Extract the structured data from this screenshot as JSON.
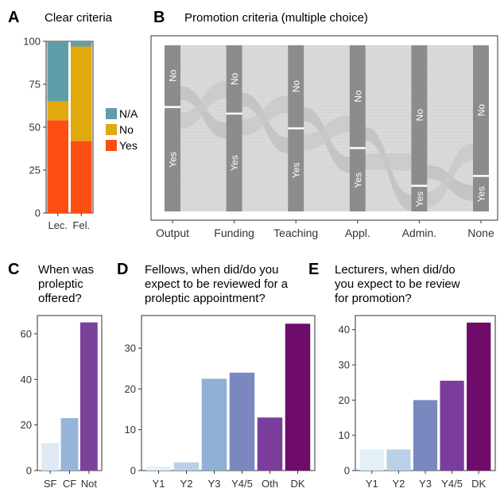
{
  "panels": {
    "a": {
      "letter": "A",
      "title": "Clear criteria"
    },
    "b": {
      "letter": "B",
      "title": "Promotion criteria (multiple choice)"
    },
    "c": {
      "letter": "C",
      "title_lines": [
        "When was",
        "proleptic",
        "offered?"
      ]
    },
    "d": {
      "letter": "D",
      "title_lines": [
        "Fellows, when did/do you",
        "expect to be reviewed for a",
        "proleptic appointment?"
      ]
    },
    "e": {
      "letter": "E",
      "title_lines": [
        "Lecturers, when did/do",
        "you expect to be review",
        "for promotion?"
      ]
    }
  },
  "chart_data": [
    {
      "id": "A",
      "type": "bar",
      "stacked": true,
      "title": "Clear criteria",
      "categories": [
        "Lec.",
        "Fel."
      ],
      "series": [
        {
          "name": "Yes",
          "color": "#fc4e12",
          "values": [
            54,
            42
          ]
        },
        {
          "name": "No",
          "color": "#e0a90e",
          "values": [
            11,
            55
          ]
        },
        {
          "name": "N/A",
          "color": "#5f9ea8",
          "values": [
            35,
            3
          ]
        }
      ],
      "ylim": [
        0,
        100
      ],
      "yticks": [
        0,
        25,
        50,
        75,
        100
      ],
      "legend": {
        "placement": "right",
        "order": [
          "N/A",
          "No",
          "Yes"
        ]
      },
      "grid": false
    },
    {
      "id": "B",
      "type": "alluvial",
      "title": "Promotion criteria (multiple choice)",
      "axes": [
        "Output",
        "Funding",
        "Teaching",
        "Appl.",
        "Admin.",
        "None"
      ],
      "strata": [
        {
          "axis": "Output",
          "no": 37,
          "yes": 63
        },
        {
          "axis": "Funding",
          "no": 41,
          "yes": 59
        },
        {
          "axis": "Teaching",
          "no": 50,
          "yes": 50
        },
        {
          "axis": "Appl.",
          "no": 62,
          "yes": 38
        },
        {
          "axis": "Admin.",
          "no": 85,
          "yes": 15
        },
        {
          "axis": "None",
          "no": 79,
          "yes": 21
        }
      ],
      "stratum_labels": {
        "no": "No",
        "yes": "Yes"
      },
      "colors": {
        "stratum": "#8c8c8c",
        "flow": "#d6d6d6"
      }
    },
    {
      "id": "C",
      "type": "bar",
      "title": "When was proleptic offered?",
      "categories": [
        "SF",
        "CF",
        "Not"
      ],
      "values": [
        12,
        23,
        65
      ],
      "colors": [
        "#dde9f3",
        "#95b6da",
        "#7b419b"
      ],
      "ylim": [
        0,
        68
      ],
      "yticks": [
        0,
        20,
        40,
        60
      ]
    },
    {
      "id": "D",
      "type": "bar",
      "title": "Fellows, when did/do you expect to be reviewed for a proleptic appointment?",
      "categories": [
        "Y1",
        "Y2",
        "Y3",
        "Y4/5",
        "Oth",
        "DK"
      ],
      "values": [
        1,
        2,
        22.5,
        24,
        13,
        36
      ],
      "colors": [
        "#e4f0f7",
        "#b9d0e6",
        "#8fb0d5",
        "#7b88c0",
        "#7a3d9c",
        "#6e0b6b"
      ],
      "ylim": [
        0,
        38
      ],
      "yticks": [
        0,
        10,
        20,
        30
      ]
    },
    {
      "id": "E",
      "type": "bar",
      "title": "Lecturers, when did/do you expect to be review for promotion?",
      "categories": [
        "Y1",
        "Y2",
        "Y3",
        "Y4/5",
        "DK"
      ],
      "values": [
        6,
        6,
        20,
        25.5,
        42
      ],
      "colors": [
        "#e4f0f7",
        "#b9d0e6",
        "#7b88c0",
        "#7a3d9c",
        "#6e0b6b"
      ],
      "ylim": [
        0,
        44
      ],
      "yticks": [
        0,
        10,
        20,
        30,
        40
      ]
    }
  ]
}
